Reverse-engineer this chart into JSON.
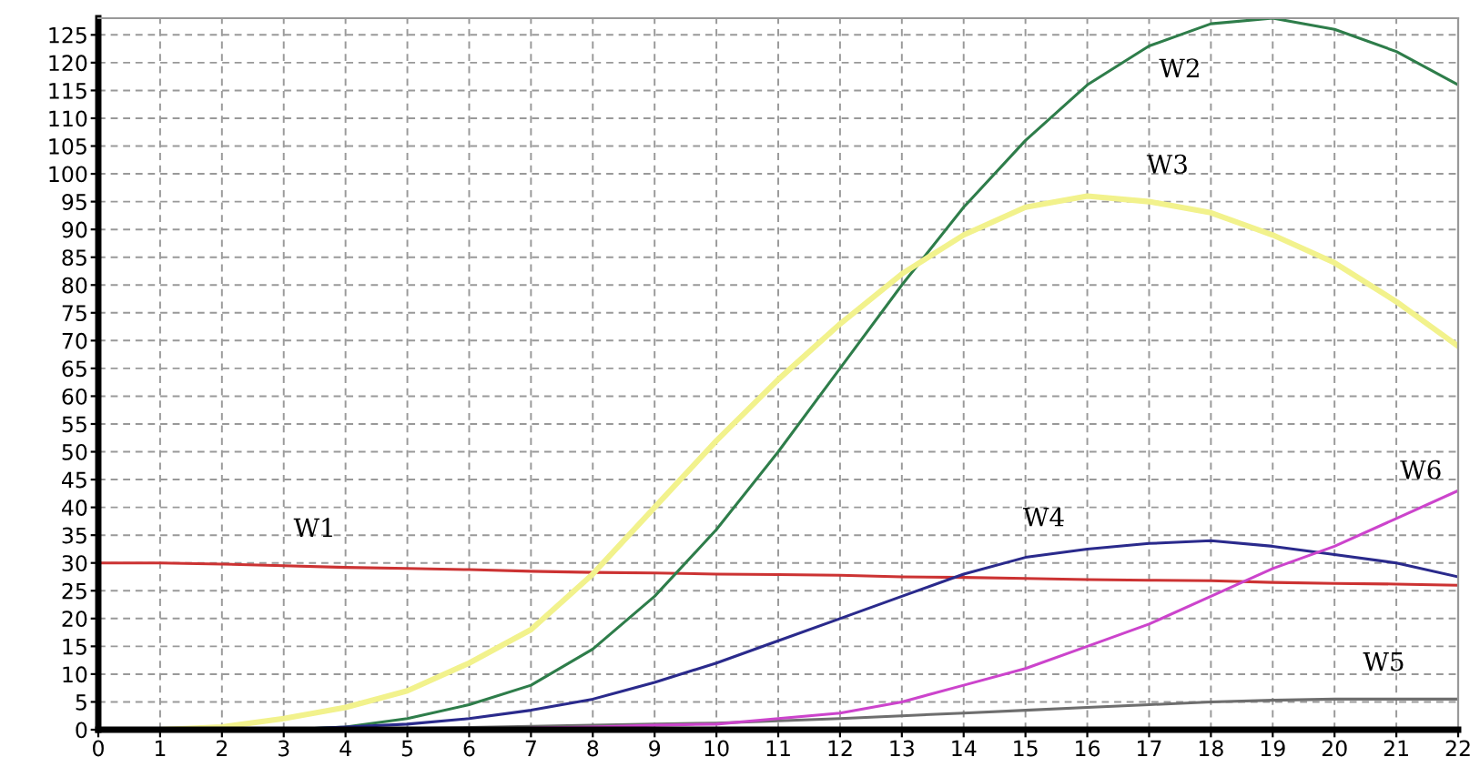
{
  "chart_data": {
    "type": "line",
    "x": [
      0,
      1,
      2,
      3,
      4,
      5,
      6,
      7,
      8,
      9,
      10,
      11,
      12,
      13,
      14,
      15,
      16,
      17,
      18,
      19,
      20,
      21,
      22
    ],
    "series": [
      {
        "color": "#cc3333",
        "values": [
          30,
          30,
          29.8,
          29.5,
          29.2,
          29,
          28.8,
          28.5,
          28.3,
          28.2,
          28,
          27.9,
          27.8,
          27.5,
          27.4,
          27.2,
          27,
          26.9,
          26.8,
          26.5,
          26.3,
          26.2,
          26
        ]
      },
      {
        "color": "#2e7d4a",
        "values": [
          0,
          0,
          0,
          0,
          0.5,
          2,
          4.5,
          8,
          14.5,
          24,
          36,
          50,
          65,
          80,
          94,
          106,
          116,
          123,
          127,
          128,
          126,
          122,
          116
        ]
      },
      {
        "color": "#f2f28c",
        "values": [
          0,
          0,
          0.5,
          2,
          4,
          7,
          12,
          18,
          28,
          40,
          52,
          63,
          73,
          82,
          89,
          94,
          96,
          95,
          93,
          89,
          84,
          77,
          69
        ]
      },
      {
        "color": "#2a2a8c",
        "values": [
          null,
          null,
          null,
          0,
          0.5,
          1,
          2,
          3.5,
          5.5,
          8.5,
          12,
          16,
          20,
          24,
          28,
          31,
          32.5,
          33.5,
          34,
          33,
          31.5,
          30,
          27.5
        ]
      },
      {
        "color": "#6e6e6e",
        "values": [
          0,
          0,
          0,
          0,
          0,
          0.2,
          0.4,
          0.6,
          0.8,
          1,
          1.2,
          1.6,
          2,
          2.5,
          3,
          3.5,
          4,
          4.5,
          5,
          5.3,
          5.5,
          5.5,
          5.5
        ]
      },
      {
        "color": "#cc44cc",
        "values": [
          null,
          null,
          null,
          null,
          null,
          null,
          null,
          0.3,
          0.5,
          0.8,
          1,
          2,
          3,
          5,
          8,
          11,
          15,
          19,
          24,
          29,
          33,
          38,
          43
        ]
      }
    ],
    "annotations": [
      {
        "text": "W1",
        "x": 3.5,
        "y": 29.6
      },
      {
        "text": "W2",
        "x": 17.5,
        "y": 125
      },
      {
        "text": "W3",
        "x": 17.3,
        "y": 95
      },
      {
        "text": "W4",
        "x": 15.3,
        "y": 31.5
      },
      {
        "text": "W5",
        "x": 20.8,
        "y": 5.5
      },
      {
        "text": "W6",
        "x": 21.4,
        "y": 40
      }
    ],
    "xlim": [
      0,
      22
    ],
    "ylim": [
      0,
      128
    ],
    "xticks": [
      0,
      1,
      2,
      3,
      4,
      5,
      6,
      7,
      8,
      9,
      10,
      11,
      12,
      13,
      14,
      15,
      16,
      17,
      18,
      19,
      20,
      21,
      22
    ],
    "yticks": [
      0,
      5,
      10,
      15,
      20,
      25,
      30,
      35,
      40,
      45,
      50,
      55,
      60,
      65,
      70,
      75,
      80,
      85,
      90,
      95,
      100,
      105,
      110,
      115,
      120,
      125
    ],
    "grid": true,
    "legend": false,
    "marker": "none",
    "line_style": "solid"
  }
}
